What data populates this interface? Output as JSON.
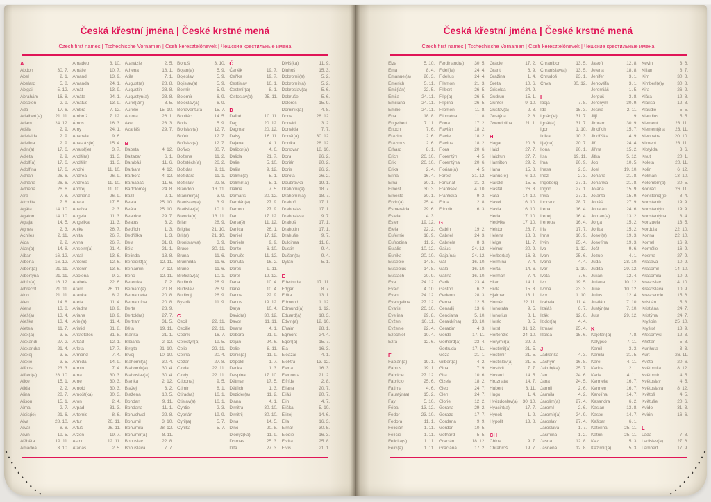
{
  "book": {
    "title": "Česká křestní jména | České krstné mená",
    "subtitle": "Czech first names | Tschechische Vornamen | Cseh keresztelőnevek | Чешские крестильные имена",
    "accent_color": "#e01557",
    "page_color": "#f6f0e3",
    "text_color": "#8d8478",
    "stitch_color": "#3b3834"
  },
  "left_page": {
    "columns": [
      [
        "#A",
        "Abdon|30. 7.",
        "Ábel|2. 1.",
        "Abelard|5. 8.",
        "Abigail|5. 12.",
        "Abrahám|16. 8.",
        "Absolon|2. 9.",
        "Ada|17. 6.",
        "Adalbert(a)|21. 11.",
        "Adam|24. 12.",
        "Adéla|2. 9.",
        "Adelaida|2. 9.",
        "Adelina|2. 9.",
        "Adin(a)|17. 6.",
        "Adléta|2. 9.",
        "Adolf(a)|17. 6.",
        "Adolfína|17. 6.",
        "Adrian|26. 6.",
        "Adriána|26. 6.",
        "Adriena|26. 6.",
        "Afra|7. 8.",
        "Afrodita|7. 8.",
        "Agáta|14. 10.",
        "Agaton|14. 10.",
        "Aglaja|14. 5.",
        "Agnes|2. 3.",
        "Achiles|2. 11.",
        "Aida|2. 2.",
        "Alan(a)|14. 8.",
        "Alban|16. 12.",
        "Albena|16. 12.",
        "Albert(a)|21. 11.",
        "Albertýna|21. 11.",
        "Albín(a)|16. 12.",
        "Albrecht|21. 11.",
        "Aldo|21. 11.",
        "Alen|14. 8.",
        "Alena|13. 8.",
        "Aleš(a)|13. 4.",
        "Aleška|13. 4.",
        "Aletea|11. 7.",
        "Alex(a)|3. 5.",
        "Alexandr|27. 2.",
        "Alexandra|21. 4.",
        "Alexej|3. 5.",
        "Alexie|3. 5.",
        "Alfons|23. 3.",
        "Alfréd(a)|28. 10.",
        "Alice|15. 1.",
        "Alida|2. 2.",
        "Alina|28. 7.",
        "Alison|15. 1.",
        "Alma|2. 7.",
        "Alois(ie)|21. 6.",
        "Alva|28. 10.",
        "Alvar|8. 8.",
        "Alvin|19. 5.",
        "Alžběta|19. 11.",
        "Amadea|3. 10."
      ],
      [
        "Amadeo|3. 10.",
        "Amálie|10. 7.",
        "Amand|13. 9.",
        "Amanda|24. 1.",
        "Amát|13. 9.",
        "Amáta|24. 1.",
        "Amatus|13. 9.",
        "Ambra|7. 12.",
        "Ambrož|7. 12.",
        "Ámos|16. 3.",
        "Amy|24. 1.",
        "Anabela|9. 6.",
        "Anastáz(ie)|15. 4.",
        "Anatol(ie)|3. 7.",
        "Anděl(a)|11. 3.",
        "Andělín|11. 3.",
        "André|11. 10.",
        "Andrea|26. 9.",
        "Andreas|11. 10.",
        "Andrej|11. 10.",
        "Andriana|26. 9.",
        "Aneta|17. 5.",
        "Anežka|2. 3.",
        "Angela|11. 3.",
        "Angelika|11. 3.",
        "Anika|26. 7.",
        "Anita|26. 7.",
        "Anna|26. 7.",
        "Anselm(a)|21. 4.",
        "Antal|13. 6.",
        "Antonie|12. 6.",
        "Antonín|13. 6.",
        "Apolena|9. 2.",
        "Arabela|22. 6.",
        "Aram|26. 11.",
        "Aranka|8. 2.",
        "Areta|11. 4.",
        "Ariadna|18. 9.",
        "Ariana|18. 9.",
        "Ariel(a)|11. 4.",
        "Aristid|31. 8.",
        "Aristoteles|31. 8.",
        "Arkád|12. 1.",
        "Arleta|17. 7.",
        "Armand|7. 4.",
        "Armida|14. 9.",
        "Armin|7. 4.",
        "Arna|30. 3.",
        "Arne|30. 3.",
        "Arnold|30. 3.",
        "Arnošt(ka)|30. 3.",
        "Áron|2. 4.",
        "Arpád|31. 3.",
        "Artemis|8. 6.",
        "Artur|26. 11.",
        "Artuš|26. 11.",
        "Arzen|19. 7.",
        "Astrid|12. 11.",
        "Atanas|2. 5."
      ],
      [
        "Atanázie|2. 5.",
        "Athéna|18. 1.",
        "Atila|7. 1.",
        "August(a)|28. 8.",
        "Augustin|28. 8.",
        "Augustýn(a)|28. 8.",
        "Aurel(ián)|8. 5.",
        "Aurélie|15. 10.",
        "Aurora|26. 1.",
        "Axel|23. 3.",
        "Azariáš|29. 7.",
        "",
        "#B",
        "Babeta|4. 12.",
        "Baltazar|6. 1.",
        "Barabáš|11. 6.",
        "Barbara|4. 12.",
        "Barbora|4. 12.",
        "Barnabáš|11. 6.",
        "Bartoloměj|24. 8.",
        "Bazil|2. 1.",
        "Beata|25. 10.",
        "Beáta|25. 10.",
        "Beatrice|29. 7.",
        "Beatus|3. 2.",
        "Bedřich|1. 3.",
        "Bedřiška|1. 3.",
        "Bela|31. 8.",
        "Béla|21. 1.",
        "Belinda|13. 8.",
        "Benedikt(a)|12. 11.",
        "Benjamín|7. 12.",
        "Beno|12. 11.",
        "Berenika|7. 2.",
        "Bernard(a)|20. 8.",
        "Bernardeta|20. 8.",
        "Bernardína|20. 8.",
        "Berta|23. 9.",
        "Bertold(a)|27. 7.",
        "Bertram|31. 5.",
        "Běta|19. 11.",
        "Bianka|21. 1.",
        "Bibiana|2. 12.",
        "Birgita|21. 10.",
        "Bivoj|10. 10.",
        "Blahomil(a)|30. 4.",
        "Blahomír(a)|30. 4.",
        "Blahoslav(a)|30. 4.",
        "Blanka|2. 12.",
        "Blažej|3. 2.",
        "Blažena|10. 5.",
        "Bohdan|9. 11.",
        "Bohdana|11. 1.",
        "Bohuchval|22. 8.",
        "Bohumil|3. 10.",
        "Bohumila|28. 12.",
        "Bohumír(a)|8. 11.",
        "Bohuslav|22. 8.",
        "Bohuslava|7. 7."
      ],
      [
        "Bohuš|3. 10.",
        "Bojan(a)|5. 9.",
        "Bojeslav|5. 9.",
        "Bojislav(a)|5. 9.",
        "Bojmír|5. 9.",
        "Bolemír|6. 9.",
        "Boleslav(a)|6. 9.",
        "Bonaventura|15. 7.",
        "Bonifác|14. 5.",
        "Boris|5. 9.",
        "Borislav(a)|12. 7.",
        "Bořek|12. 7.",
        "Bořislav(a)|12. 7.",
        "Bořivoj|30. 7.",
        "Božena|11. 2.",
        "Božetěch(a)|26. 2.",
        "Božidar|9. 11.",
        "Božidara|11. 1.",
        "Božislav|22. 8.",
        "Brandon|13. 11.",
        "Branimír(a)|3. 9.",
        "Branislav(a)|3. 9.",
        "Bratislav(a)|10. 1.",
        "Brenda(n)|13. 11.",
        "Brian|28. 9.",
        "Brigita|21. 10.",
        "Brit(a)|21. 10.",
        "Bronislav(a)|3. 9.",
        "Bruce|30. 11.",
        "Bruna|11. 6.",
        "Brunhilda|11. 6.",
        "Bruno|11. 6.",
        "Břetislav(a)|10. 1.",
        "Budimír|26. 9.",
        "Budislav|26. 9.",
        "Budivoj|26. 9.",
        "Bystrík|11. 9.",
        "",
        "#C",
        "Cecil|22. 11.",
        "Cecílie|22. 11.",
        "Cedrik|16. 7.",
        "Celestýn(a)|19. 5.",
        "Celie|22. 11.",
        "Celina|20. 4.",
        "Cézar|27. 8.",
        "Cinda|22. 11.",
        "Cindy|22. 11.",
        "Ctibor(a)|9. 5.",
        "Ctimír|8. 1.",
        "Ctirad(a)|16. 1.",
        "Ctislav(a)|16. 1.",
        "Cyntie|2. 3.",
        "Cyprián|19. 9.",
        "Cyril(a)|5. 7.",
        "Cyrilka|5. 7."
      ],
      [
        "#Č",
        "Čeněk|19. 7.",
        "Čeňka|19. 7.",
        "Čestislav|16. 1.",
        "Čestmír(a)|8. 1.",
        "Čistoslav(a)|25. 11.",
        "",
        "#D",
        "Dafné|10. 11.",
        "Dag|20. 12.",
        "Dagmar|20. 12.",
        "Daisy|16. 11.",
        "Dajana|4. 1.",
        "Dalibor(a)|4. 6.",
        "Dalida|21. 7.",
        "Dalie|5. 10.",
        "Dalila|9. 12.",
        "Dalimil(a)|5. 1.",
        "Dalimír(a)|5. 1.",
        "Dalma|7. 5.",
        "Damaris|20. 12.",
        "Damián(a)|27. 9.",
        "Damon|27. 9.",
        "Dan|17. 12.",
        "Dana(é)|11. 12.",
        "Danica|26. 1.",
        "Daniel|17. 12.",
        "Daniela|9. 9.",
        "Dante|6. 10.",
        "Danuše|11. 12.",
        "Danuta|16. 2.",
        "Darek|9. 11.",
        "Darel|19. 12.",
        "Daria|10. 4.",
        "Darie|10. 4.",
        "Darina|22. 9.",
        "Darius|19. 12.",
        "Darja|10. 4.",
        "David(a)|30. 12.",
        "Davor|11. 11.",
        "Deana|4. 1.",
        "Debora|21. 9.",
        "Dejan|24. 6.",
        "Delie|8. 11.",
        "Denis(a)|11. 9.",
        "Děpold|1. 7.",
        "Derika|1. 3.",
        "Despina|17. 10.",
        "Dětmar|17. 5.",
        "Dětřich|1. 3.",
        "Dezider(a)|11. 2.",
        "Diana|4. 1.",
        "Dimitra|30. 10.",
        "Dimitrij|30. 10.",
        "Dina|14. 5.",
        "Dino|20. 8.",
        "Dionýz(ka)|11. 9.",
        "Dismas|25. 3.",
        "Dita|27. 3."
      ],
      [
        "Diviš(ka)|11. 9.",
        "Dluhoš|15. 3.",
        "Dobromil(a)|5. 2.",
        "Dobromír(a)|5. 2.",
        "Dobroslav(a)|5. 6.",
        "Dobruše|5. 6.",
        "Dolores|15. 9.",
        "Dominik(a)|4. 8.",
        "Dona|28. 12.",
        "Donald|3. 2.",
        "Donalda|7. 7.",
        "Donát(a)|30. 12.",
        "Donika|28. 12.",
        "Donovan|18. 10.",
        "Dora|26. 2.",
        "Dorián|20. 2.",
        "Doris|26. 2.",
        "Dorota|26. 2.",
        "Doubravka|19. 1.",
        "Drahomil(a)|18. 7.",
        "Drahomír(a)|18. 7.",
        "Drahoň|17. 1.",
        "Drahoslav|17. 1.",
        "Drahoslava|9. 7.",
        "Drahoš|17. 1.",
        "Drahotín|17. 1.",
        "Drahuše|9. 7.",
        "Dulcinea|11. 8.",
        "Dustin|9. 4.",
        "Dušan(a)|9. 4.",
        "Dylan|5. 1.",
        "",
        "#E",
        "Edeltruda|17. 11.",
        "Edgar|8. 7.",
        "Edita|13. 1.",
        "Edmond|1. 12.",
        "Edmund(a)|1. 12.",
        "Eduard(a)|18. 3.",
        "Edvin(a)|12. 10.",
        "Efraim|28. 1.",
        "Egmont|24. 4.",
        "Egon(a)|15. 7.",
        "Ela|16. 3.",
        "Eleazar|4. 1.",
        "Elektra|13. 12.",
        "Elena|16. 3.",
        "Eleonora|21. 2.",
        "Elfrída|2. 8.",
        "Eliana|20. 7.",
        "Eliáš|20. 7.",
        "Elin|4. 7.",
        "Eliška|5. 10.",
        "Elizej|14. 6.",
        "Ella|16. 3.",
        "Elmar|30. 5.",
        "Elodie|16. 3.",
        "Elvíra|25. 8.",
        "Elvis|21. 1."
      ]
    ]
  },
  "right_page": {
    "columns": [
      [
        "Elza|5. 10.",
        "Ema|8. 4.",
        "Emanuel(a)|26. 3.",
        "Emerich|5. 11.",
        "Emil(ián)|22. 5.",
        "Emila|24. 11.",
        "Emiliána|24. 11.",
        "Emílie|24. 11.",
        "Ena|18. 8.",
        "Engelbert|7. 11.",
        "Enoch|7. 6.",
        "Erazim|2. 6.",
        "Erazmus|2. 6.",
        "Erhard|8. 1.",
        "Erich|26. 10.",
        "Erik|26. 10.",
        "Erika|2. 4.",
        "Erina|16. 4.",
        "Erna|30. 1.",
        "Ernest|30. 3.",
        "Ernesta|30. 1.",
        "Ervín(a)|25. 4.",
        "Esmeralda|29. 6.",
        "Estela|4. 3.",
        "Ester|19. 12.",
        "Etela|22. 2.",
        "Eufémie|18. 9.",
        "Eufrozína|11. 2.",
        "Eulálie|10. 12.",
        "Eunika|20. 10.",
        "Eusebie|14. 8.",
        "Eusebius|14. 8.",
        "Eustach|20. 9.",
        "Eva|24. 12.",
        "Evald|4. 10.",
        "Evan|24. 12.",
        "Evangelína|27. 12.",
        "Evarist|26. 10.",
        "Evelína|29. 8.",
        "Evžen|10. 11.",
        "Evženie|22. 4.",
        "Ezechiel|10. 4.",
        "Ezra|12. 6.",
        "",
        "#F",
        "Fabián(a)|19. 1.",
        "Fabius|19. 1.",
        "Fabricie|27. 12.",
        "Fabricio|25. 6.",
        "Fatima|4. 6.",
        "Faustýn(a)|15. 2.",
        "Fay|5. 10.",
        "Féba|13. 12.",
        "Fedor|23. 10.",
        "Fedora|11. 1.",
        "Felicián|1. 11.",
        "Felície|1. 11.",
        "Felicita(s)|1. 11.",
        "Felix(a)|1. 11."
      ],
      [
        "Ferdinand(a)|30. 5.",
        "Fidel(ie)|24. 4.",
        "Fidelius|24. 4.",
        "Filemon|21. 3.",
        "Filibert|26. 5.",
        "Filip(a)|26. 5.",
        "Filipína|26. 5.",
        "Filomen|11. 8.",
        "Filoména|11. 8.",
        "Fiona|17. 2.",
        "Flavián|18. 2.",
        "Flavie|18. 2.",
        "Flavius|18. 2.",
        "Flóra|20. 6.",
        "Florentýn|4. 5.",
        "Florentýna|20. 6.",
        "Florián(a)|4. 5.",
        "Forest|31. 12.",
        "Fortunát|31. 3.",
        "František|4. 10.",
        "Františka|9. 3.",
        "Frída|2. 8.",
        "Fridolín|6. 3.",
        "",
        "#G",
        "Gabin|19. 2.",
        "Gabriel|24. 3.",
        "Gabriela|8. 3.",
        "Gaius|24. 12.",
        "Gaja(na)|24. 12.",
        "Gál|16. 10.",
        "Gala|16. 10.",
        "Galina|16. 10.",
        "Garik|23. 4.",
        "Gaston|6. 2.",
        "Gedeon|28. 3.",
        "Gema|12. 5.",
        "Genadij|13. 6.",
        "Genciana|5. 10.",
        "Gerald(ína)|13. 10.",
        "Gerazim|4. 3.",
        "Gerda|17. 11.",
        "Gerhard(a)|23. 4.",
        "Gertruda|17. 11.",
        "Géza|21. 1.",
        "Gilbert(a)|4. 2.",
        "Gina|7. 9.",
        "Gita|10. 6.",
        "Gizela|18. 2.",
        "Gleb|24. 7.",
        "Glen|24. 7.",
        "Glorie|12. 2.",
        "Gorana|29. 2.",
        "Gorazd|17. 7.",
        "Gordana|9. 9.",
        "Gordon|10. 5.",
        "Gothard|5. 5.",
        "Gracián|18. 12.",
        "Graciána|17. 2."
      ],
      [
        "Grácie|17. 2.",
        "Grant|6. 9.",
        "Gražina|1. 4.",
        "Gréta|10. 6.",
        "Griselda|24. 9.",
        "Gudrun|15. 1.",
        "Gunter|9. 10.",
        "Gustav(a)|2. 8.",
        "Gustýna|2. 8.",
        "Gvendolína|21. 1.",
        "",
        "#H",
        "Hagar|20. 3.",
        "Haidi|27. 7.",
        "Haidrun|27. 7.",
        "Hamilton|29. 2.",
        "Hana|15. 8.",
        "Hanuš(e)|6. 10.",
        "Harold|15. 5.",
        "Haštal|26. 3.",
        "Háta|14. 10.",
        "Havel|16. 10.",
        "Havla|16. 10.",
        "Heda|17. 10.",
        "Hedvika|17. 10.",
        "Hektor|28. 7.",
        "Helena|18. 8.",
        "Helga|11. 7.",
        "Helmut|20. 9.",
        "Herbert(a)|16. 3.",
        "Hermína|7. 4.",
        "Herta|14. 6.",
        "Heřman|7. 4.",
        "Hilar|14. 1.",
        "Hilda|15. 3.",
        "Hjalmar|13. 1.",
        "Homér|22. 11.",
        "Honoráta|9. 5.",
        "Honorius|8. 1.",
        "Horác|3. 5.",
        "Horst|31. 12.",
        "Hortenzie|24. 10.",
        "Horymír(a)|29. 2.",
        "Hostimil(a)|21. 5.",
        "Hostimír|21. 5.",
        "Hostislav(a)|21. 5.",
        "Hostivít|7. 7.",
        "Hovard|14. 5.",
        "Hroznata|14. 7.",
        "Hubert|3. 11.",
        "Hugo|1. 4.",
        "Hvězdoslav(a)|30. 10.",
        "Hyacint(a)|17. 7.",
        "Hynek|1. 2.",
        "Hypolit|13. 8.",
        "",
        "#CH",
        "Chloe|9. 7.",
        "Chrabroš|19. 7."
      ],
      [
        "Chranibor|13. 5.",
        "Chranislav(a)|13. 5.",
        "Chrudoš|23. 1.",
        "Chval|30. 12.",
        "",
        "#I",
        "Iboja|7. 8.",
        "Ida|15. 3.",
        "Ignác(ie)|31. 7.",
        "Ignát(a)|31. 7.",
        "Igor|1. 10.",
        "Ildika|10. 3.",
        "Ilja(na)|20. 7.",
        "Ilona|20. 1.",
        "Ilsa|19. 11.",
        "Ima|20. 9.",
        "Inesa|2. 3.",
        "Inéz|2. 3.",
        "Ingeborg|27. 1.",
        "Ingrid|27. 1.",
        "Inka|27. 1.",
        "Inocenc|28. 7.",
        "Irena|16. 4.",
        "Irenej|16. 4.",
        "Ireneus|16. 4.",
        "Iris|17. 7.",
        "Irma|10. 9.",
        "Irvin|25. 4.",
        "Iva|1. 12.",
        "Ivan|25. 6.",
        "Ivana|4. 4.",
        "Ivar|1. 10.",
        "Iveta|7. 6.",
        "Ivo|19. 5.",
        "Ivona|23. 3.",
        "Ivor|1. 10.",
        "Izabela|11. 4.",
        "Izaiáš|6. 7.",
        "Izák|12. 6.",
        "Izidor(a)|4. 4.",
        "Izmael|25. 4.",
        "Izolda|15. 6.",
        "",
        "#J",
        "Jadranka|4. 3.",
        "Jáchym|16. 8.",
        "Jakub(ka)|25. 7.",
        "Jan|24. 6.",
        "Jana|24. 5.",
        "Jarmil|2. 6.",
        "Jarmila|4. 2.",
        "Jarolím(a)|27. 4.",
        "Jaromil|2. 6.",
        "Jaromír(a)|24. 9.",
        "Jaroslav|27. 4.",
        "Jaroslava|1. 7.",
        "Jasmína|1. 2.",
        "Jasna|12. 8.",
        "Jasněna|12. 8."
      ],
      [
        "Jasoň|12. 8.",
        "Jelena|18. 8.",
        "Jenifer|3. 1.",
        "Jenovéfa|3. 1.",
        "Jeremiáš|1. 5.",
        "Jerguš|3. 8.",
        "Jeroným|30. 9.",
        "Jesika|2. 11.",
        "Jiljí|1. 9.",
        "Jimram|30. 9.",
        "Jindřich|15. 7.",
        "Jindřiška|4. 9.",
        "Jiří|24. 4.",
        "Jiřina|15. 2.",
        "Jitka|5. 12.",
        "Job|10. 5.",
        "Joel|19. 10.",
        "Johana|21. 8.",
        "Johanka|21. 8.",
        "Jolana|15. 9.",
        "Jolanta|15. 9.",
        "Jonáš|27. 9.",
        "Jonatan|24. 6.",
        "Jordan(a)|13. 2.",
        "Jorga|15. 2.",
        "Jorika|15. 2.",
        "Josef(a)|19. 3.",
        "Josefína|19. 3.",
        "Jošt|9. 6.",
        "Jozue|4. 1.",
        "Juda|28. 10.",
        "Judita|29. 12.",
        "Julián|12. 4.",
        "Juliána|10. 12.",
        "Julie|10. 12.",
        "Julius|12. 4.",
        "Justián|7. 10.",
        "Justýn(a)|7. 10.",
        "Juta|29. 12.",
        "",
        "#K",
        "Kajetán(a)|7. 8.",
        "Kalypso|7. 11.",
        "Kamil|3. 3.",
        "Kamila|31. 5.",
        "Karel|4. 11.",
        "Karina|2. 1.",
        "Karla|4. 11.",
        "Karmela|16. 7.",
        "Karmen|16. 7.",
        "Karolína|14. 7.",
        "Kasandra|6. 2.",
        "Kasián|13. 8.",
        "Kastor|14. 7.",
        "Kašpar|6. 1.",
        "Kateřina|25. 11.",
        "Katrin|25. 11.",
        "Kazi|5. 3.",
        "Kazimír(a)|5. 3."
      ],
      [
        "Kevin|3. 6.",
        "Kilián|8. 7.",
        "Kim|30. 8.",
        "Kimberl(e)y|30. 8.",
        "Kira|26. 2.",
        "Klára|12. 8.",
        "Klarisa|12. 8.",
        "Klaudie|5. 5.",
        "Klaudius|5. 5.",
        "Klement|23. 11.",
        "Klementýna|23. 11.",
        "Kleopatra|20. 10.",
        "Kliment|23. 11.",
        "Klotylda|3. 6.",
        "Knut|20. 1.",
        "Koleta|20. 11.",
        "Kolin|6. 12.",
        "Kolman|13. 10.",
        "Kolombín(a)|20. 5.",
        "Konrád|26. 11.",
        "Konstanc(i)e|8. 4.",
        "Konstantin|19. 9.",
        "Konstantýn|19. 9.",
        "Konstantýna|8. 4.",
        "Konzuela|13. 5.",
        "Kordula|22. 10.",
        "Korina|22. 10.",
        "Kornel|16. 9.",
        "Kornélie|16. 9.",
        "Kosma|27. 9.",
        "Krasava|10. 9.",
        "Krasomil|14. 10.",
        "Krasomila|10. 9.",
        "Krasoslav|14. 10.",
        "Krasoslava|10. 9.",
        "Krescencie|15. 6.",
        "Kristián|5. 8.",
        "Kristiána|24. 7.",
        "Kristýna|24. 7.",
        "Kryšpín|25. 10.",
        "Kryštof|18. 9.",
        "Křesomysl|12. 3.",
        "Křišťan|5. 8.",
        "Kunhuta|3. 3.",
        "Kurt|26. 11.",
        "Květa|20. 6.",
        "Květomila|8. 12.",
        "Květomír|4. 5.",
        "Květoslav|4. 5.",
        "Květoslava|8. 12.",
        "Květoš|4. 5.",
        "Květuše|20. 6.",
        "Kvido|31. 3.",
        "Kvirin|16. 6.",
        "",
        "#L",
        "Lada|7. 8.",
        "Ladislav(a)|27. 6.",
        "Lambert|17. 9."
      ]
    ]
  }
}
